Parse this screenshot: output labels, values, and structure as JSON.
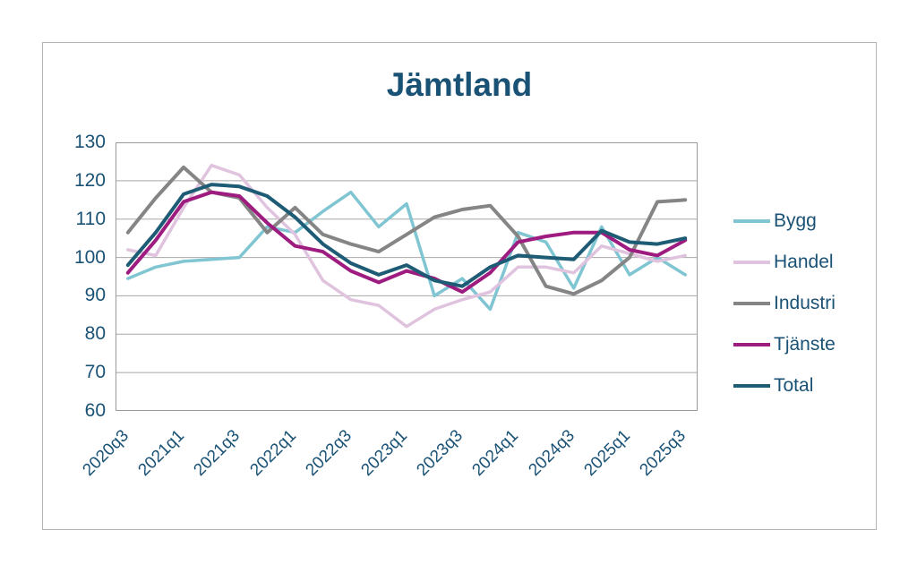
{
  "title": "Jämtland",
  "colors": {
    "bygg": "#7fc5d2",
    "handel": "#e0c3de",
    "industri": "#858585",
    "tjanste": "#9e1b7f",
    "total": "#1e5b74",
    "text": "#1a5276",
    "grid": "#a8a8a8",
    "frame": "#9a9a9a"
  },
  "y_axis": {
    "tick_labels": [
      "130",
      "120",
      "110",
      "100",
      "90",
      "80",
      "70",
      "60"
    ]
  },
  "x_axis": {
    "tick_labels": [
      "2020q3",
      "2021q1",
      "2021q3",
      "2022q1",
      "2022q3",
      "2023q1",
      "2023q3",
      "2024q1",
      "2024q3",
      "2025q1",
      "2025q3"
    ]
  },
  "legend": {
    "position": "right",
    "items": [
      "Bygg",
      "Handel",
      "Industri",
      "Tjänste",
      "Total"
    ]
  },
  "chart_data": {
    "type": "line",
    "title": "Jämtland",
    "categories": [
      "2020q3",
      "2020q4",
      "2021q1",
      "2021q2",
      "2021q3",
      "2021q4",
      "2022q1",
      "2022q2",
      "2022q3",
      "2022q4",
      "2023q1",
      "2023q2",
      "2023q3",
      "2023q4",
      "2024q1",
      "2024q2",
      "2024q3",
      "2024q4",
      "2025q1",
      "2025q2",
      "2025q3"
    ],
    "series": [
      {
        "name": "Bygg",
        "color_key": "bygg",
        "stroke_width": 3.5,
        "values": [
          94.5,
          97.5,
          99,
          99.5,
          100,
          108,
          106.5,
          112,
          117,
          108,
          114,
          90,
          94.5,
          86.5,
          106.5,
          104,
          92,
          108,
          95.5,
          100,
          95.5
        ]
      },
      {
        "name": "Handel",
        "color_key": "handel",
        "stroke_width": 3.5,
        "values": [
          102,
          100.5,
          113,
          124,
          121.5,
          113,
          106,
          94,
          89,
          87.5,
          82,
          86.5,
          89,
          91,
          97.5,
          97.5,
          96,
          103,
          101,
          99,
          100.5
        ]
      },
      {
        "name": "Industri",
        "color_key": "industri",
        "stroke_width": 4,
        "values": [
          106.5,
          115.5,
          123.5,
          117,
          115.5,
          106.5,
          113,
          106,
          103.5,
          101.5,
          106,
          110.5,
          112.5,
          113.5,
          105.5,
          92.5,
          90.5,
          94,
          100,
          114.5,
          115
        ]
      },
      {
        "name": "Tjänste",
        "color_key": "tjanste",
        "stroke_width": 4,
        "values": [
          96,
          104.5,
          114.5,
          117,
          116,
          109,
          103,
          101.5,
          96.5,
          93.5,
          96.5,
          94.5,
          91,
          96,
          104,
          105.5,
          106.5,
          106.5,
          102,
          100.5,
          104.5
        ]
      },
      {
        "name": "Total",
        "color_key": "total",
        "stroke_width": 4,
        "values": [
          98,
          106.5,
          116.5,
          119,
          118.5,
          116,
          110.5,
          103.5,
          98.5,
          95.5,
          98,
          94,
          92.5,
          97.5,
          100.5,
          100,
          99.5,
          107,
          104,
          103.5,
          105
        ]
      }
    ],
    "ylim": [
      60,
      130
    ],
    "y_step": 10,
    "grid": true,
    "legend_position": "right",
    "x_labels_shown_every": 2
  }
}
